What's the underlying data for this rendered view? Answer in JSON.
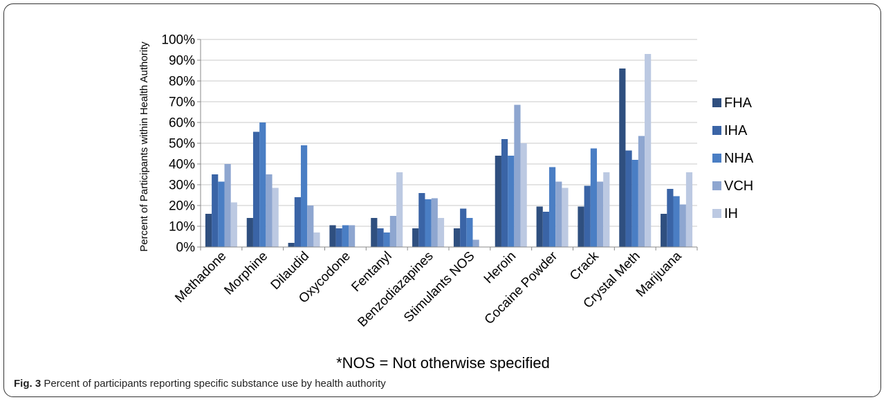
{
  "chart_data": {
    "type": "bar",
    "ylabel": "Percent of Participants within Health Authority",
    "xlabel": "",
    "ylim": [
      0,
      100
    ],
    "y_ticks": [
      "0%",
      "10%",
      "20%",
      "30%",
      "40%",
      "50%",
      "60%",
      "70%",
      "80%",
      "90%",
      "100%"
    ],
    "grid": true,
    "legend_position": "right",
    "categories": [
      "Methadone",
      "Morphine",
      "Dilaudid",
      "Oxycodone",
      "Fentanyl",
      "Benzodiazapines",
      "Stimulants NOS",
      "Heroin",
      "Cocaine Powder",
      "Crack",
      "Crystal Meth",
      "Marijuana"
    ],
    "series": [
      {
        "name": "FHA",
        "color": "#2f4f7f",
        "values": [
          16,
          14,
          2,
          10.5,
          14,
          9,
          9,
          44,
          19.5,
          19.5,
          86,
          16
        ]
      },
      {
        "name": "IHA",
        "color": "#3a64a6",
        "values": [
          35,
          55.5,
          24,
          9,
          9,
          26,
          18.5,
          52,
          17,
          29.5,
          46.5,
          28
        ]
      },
      {
        "name": "NHA",
        "color": "#4a7ec4",
        "values": [
          31.5,
          60,
          49,
          10.5,
          7,
          23,
          14,
          44,
          38.5,
          47.5,
          42,
          24.5
        ]
      },
      {
        "name": "VCH",
        "color": "#8ea6d0",
        "values": [
          40,
          35,
          20,
          10.5,
          15,
          23.5,
          3.5,
          68.5,
          31.5,
          31.5,
          53.5,
          20.5
        ]
      },
      {
        "name": "IH",
        "color": "#bcc9e2",
        "values": [
          21.5,
          28.5,
          7,
          0,
          36,
          14,
          0,
          50,
          28.5,
          36,
          93,
          36
        ]
      }
    ]
  },
  "footnote": "*NOS = Not otherwise specified",
  "caption": {
    "label": "Fig. 3",
    "text": " Percent of participants reporting specific substance use by health authority"
  }
}
